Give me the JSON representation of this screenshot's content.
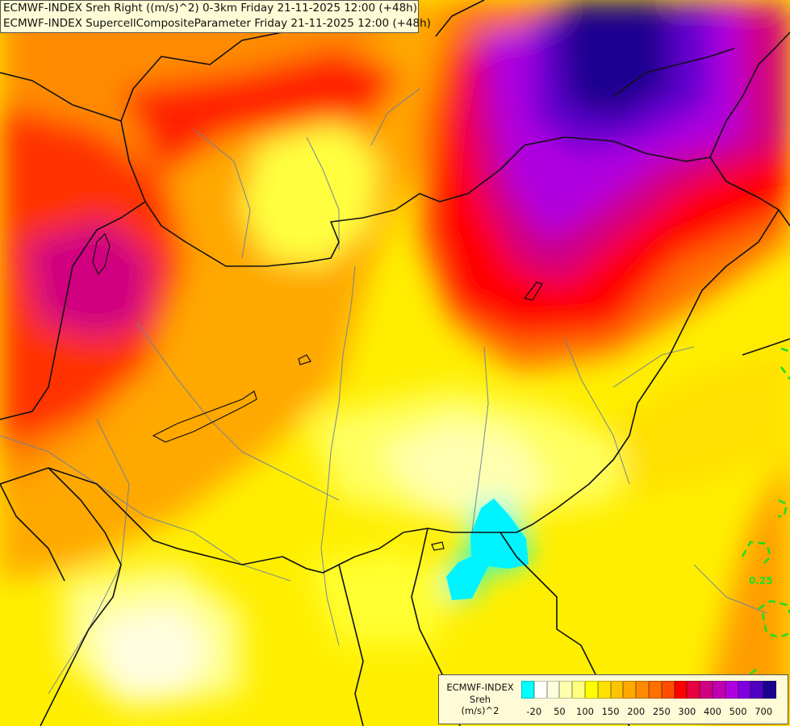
{
  "header": {
    "line1": "ECMWF-INDEX Sreh Right ((m/s)^2) 0-3km Friday 21-11-2025 12:00 (+48h)",
    "line2": "ECMWF-INDEX SupercellCompositeParameter Friday 21-11-2025 12:00 (+48h)"
  },
  "legend": {
    "line1": "ECMWF-INDEX",
    "line2": "Sreh",
    "line3": "(m/s)^2",
    "ticks": [
      "-20",
      "50",
      "100",
      "150",
      "200",
      "250",
      "300",
      "400",
      "500",
      "700"
    ],
    "colors": [
      "#00ffff",
      "#ffffff",
      "#fffde0",
      "#ffffb0",
      "#ffff80",
      "#ffff00",
      "#ffe000",
      "#ffc400",
      "#ffa800",
      "#ff8c00",
      "#ff7000",
      "#ff4c00",
      "#ff0000",
      "#e80040",
      "#d00080",
      "#c000b0",
      "#b000e0",
      "#8000e0",
      "#5000c0",
      "#1c0090"
    ]
  },
  "contour_label": "0.25"
}
